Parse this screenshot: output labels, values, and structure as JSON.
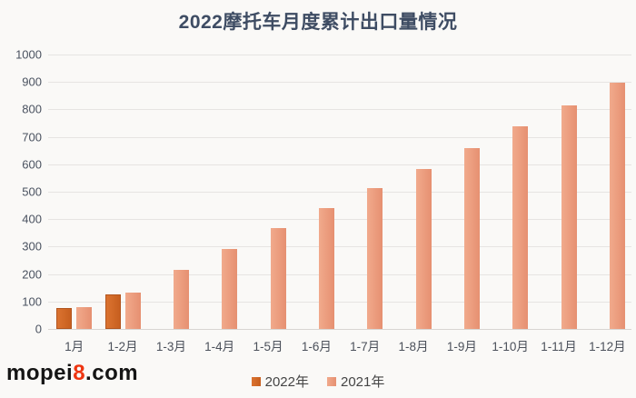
{
  "title": "2022摩托车月度累计出口量情况",
  "watermark": {
    "part1": "mopei",
    "part2": "8",
    "part3": ".com",
    "digit_color": "#ee3511",
    "text_color": "#151515"
  },
  "chart_data": {
    "type": "bar",
    "title": "2022摩托车月度累计出口量情况",
    "xlabel": "",
    "ylabel": "",
    "categories": [
      "1月",
      "1-2月",
      "1-3月",
      "1-4月",
      "1-5月",
      "1-6月",
      "1-7月",
      "1-8月",
      "1-9月",
      "1-10月",
      "1-11月",
      "1-12月"
    ],
    "series": [
      {
        "name": "2022年",
        "values": [
          75,
          127,
          null,
          null,
          null,
          null,
          null,
          null,
          null,
          null,
          null,
          null
        ],
        "color_start": "#db7330",
        "color_end": "#c75f1f",
        "border_color": "#b2551e"
      },
      {
        "name": "2021年",
        "values": [
          80,
          131,
          214,
          292,
          367,
          439,
          512,
          582,
          660,
          737,
          814,
          897
        ],
        "color_start": "#f1aa8c",
        "color_end": "#e69071",
        "border_color": ""
      }
    ],
    "ylim": [
      0,
      1000
    ],
    "ytick_step": 100,
    "grid": true,
    "legend_position": "bottom",
    "gridline_color": "#e6e4e2",
    "background_color": "#faf9f7"
  }
}
